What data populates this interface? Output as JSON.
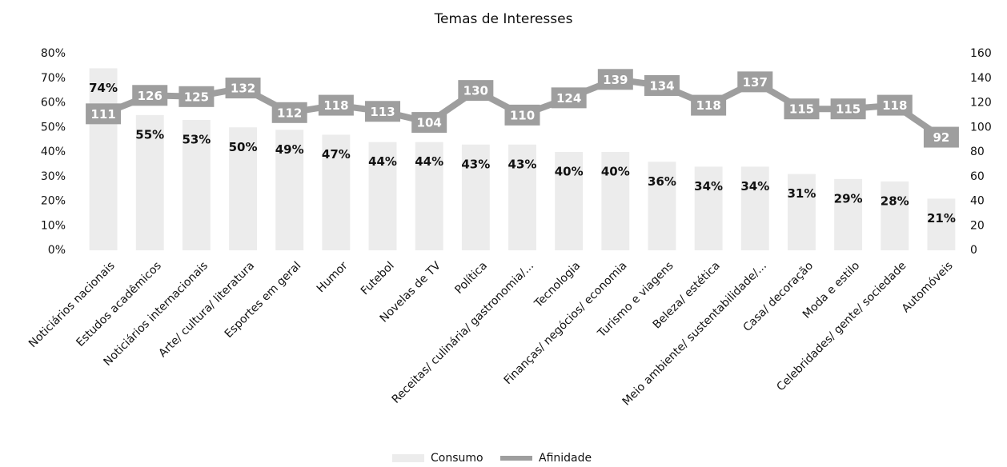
{
  "chart_data": {
    "type": "combo",
    "title": "Temas de Interesses",
    "categories": [
      "Noticiários nacionais",
      "Estudos acadêmicos",
      "Noticiários internacionais",
      "Arte/ cultura/ literatura",
      "Esportes em geral",
      "Humor",
      "Futebol",
      "Novelas de TV",
      "Política",
      "Receitas/ culinária/ gastronomia/...",
      "Tecnologia",
      "Finanças/ negócios/ economia",
      "Turismo e viagens",
      "Beleza/ estética",
      "Meio ambiente/ sustentabilidade/...",
      "Casa/ decoração",
      "Moda e estilo",
      "Celebridades/ gente/ sociedade",
      "Automóveis"
    ],
    "series": [
      {
        "name": "Consumo",
        "type": "bar",
        "color": "#ececec",
        "values": [
          74,
          55,
          53,
          50,
          49,
          47,
          44,
          44,
          43,
          43,
          40,
          40,
          36,
          34,
          34,
          31,
          29,
          28,
          21
        ],
        "value_labels": [
          "74%",
          "55%",
          "53%",
          "50%",
          "49%",
          "47%",
          "44%",
          "44%",
          "43%",
          "43%",
          "40%",
          "40%",
          "36%",
          "34%",
          "34%",
          "31%",
          "29%",
          "28%",
          "21%"
        ]
      },
      {
        "name": "Afinidade",
        "type": "line",
        "axis": "y2",
        "color": "#9e9e9e",
        "values": [
          111,
          126,
          125,
          132,
          112,
          118,
          113,
          104,
          130,
          110,
          124,
          139,
          134,
          118,
          137,
          115,
          115,
          118,
          92
        ]
      }
    ],
    "ylim": [
      0,
      80
    ],
    "yticks": [
      {
        "value": 0,
        "label": "0%"
      },
      {
        "value": 10,
        "label": "10%"
      },
      {
        "value": 20,
        "label": "20%"
      },
      {
        "value": 30,
        "label": "30%"
      },
      {
        "value": 40,
        "label": "40%"
      },
      {
        "value": 50,
        "label": "50%"
      },
      {
        "value": 60,
        "label": "60%"
      },
      {
        "value": 70,
        "label": "70%"
      },
      {
        "value": 80,
        "label": "80%"
      }
    ],
    "y2lim": [
      0,
      160
    ],
    "y2ticks": [
      0,
      20,
      40,
      60,
      80,
      100,
      120,
      140,
      160
    ],
    "legend": "bottom"
  }
}
